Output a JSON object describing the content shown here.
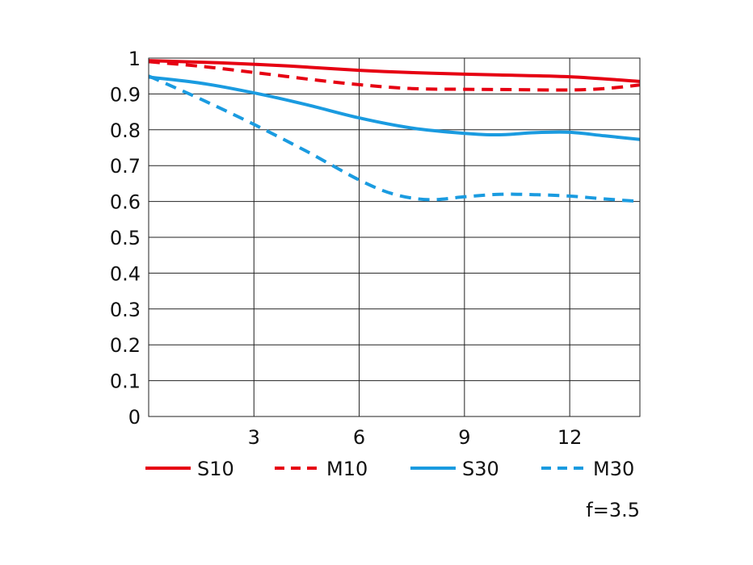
{
  "chart_data": {
    "type": "line",
    "title": "",
    "xlabel": "",
    "ylabel": "",
    "xlim": [
      0,
      14
    ],
    "ylim": [
      0,
      1
    ],
    "x_ticks": [
      3,
      6,
      9,
      12
    ],
    "x_tick_labels": [
      "3",
      "6",
      "9",
      "12"
    ],
    "y_ticks": [
      0,
      0.1,
      0.2,
      0.3,
      0.4,
      0.5,
      0.6,
      0.7,
      0.8,
      0.9,
      1
    ],
    "y_tick_labels": [
      "0",
      "0.1",
      "0.2",
      "0.3",
      "0.4",
      "0.5",
      "0.6",
      "0.7",
      "0.8",
      "0.9",
      "1"
    ],
    "grid": true,
    "legend_position": "bottom",
    "annotation": "f=3.5",
    "series": [
      {
        "name": "S10",
        "color": "#e60012",
        "dash": "solid",
        "points": [
          [
            0,
            0.993
          ],
          [
            2,
            0.987
          ],
          [
            4,
            0.978
          ],
          [
            6,
            0.966
          ],
          [
            8,
            0.958
          ],
          [
            10,
            0.953
          ],
          [
            12,
            0.948
          ],
          [
            14,
            0.935
          ]
        ]
      },
      {
        "name": "M10",
        "color": "#e60012",
        "dash": "dashed",
        "points": [
          [
            0,
            0.99
          ],
          [
            1.5,
            0.977
          ],
          [
            3,
            0.96
          ],
          [
            4.5,
            0.942
          ],
          [
            6,
            0.926
          ],
          [
            7.5,
            0.915
          ],
          [
            9,
            0.913
          ],
          [
            10.5,
            0.912
          ],
          [
            12,
            0.911
          ],
          [
            13,
            0.915
          ],
          [
            14,
            0.925
          ]
        ]
      },
      {
        "name": "S30",
        "color": "#1a9be0",
        "dash": "solid",
        "points": [
          [
            0,
            0.947
          ],
          [
            1.5,
            0.93
          ],
          [
            3,
            0.903
          ],
          [
            4.5,
            0.87
          ],
          [
            6,
            0.833
          ],
          [
            7.5,
            0.805
          ],
          [
            9,
            0.79
          ],
          [
            10,
            0.786
          ],
          [
            11,
            0.792
          ],
          [
            12,
            0.793
          ],
          [
            13,
            0.783
          ],
          [
            14,
            0.773
          ]
        ]
      },
      {
        "name": "M30",
        "color": "#1a9be0",
        "dash": "dashed",
        "points": [
          [
            0,
            0.95
          ],
          [
            1.5,
            0.885
          ],
          [
            3,
            0.815
          ],
          [
            4.5,
            0.74
          ],
          [
            6,
            0.66
          ],
          [
            7,
            0.62
          ],
          [
            8,
            0.605
          ],
          [
            9,
            0.613
          ],
          [
            10,
            0.62
          ],
          [
            11,
            0.619
          ],
          [
            12,
            0.615
          ],
          [
            13,
            0.607
          ],
          [
            14,
            0.6
          ]
        ]
      }
    ]
  }
}
